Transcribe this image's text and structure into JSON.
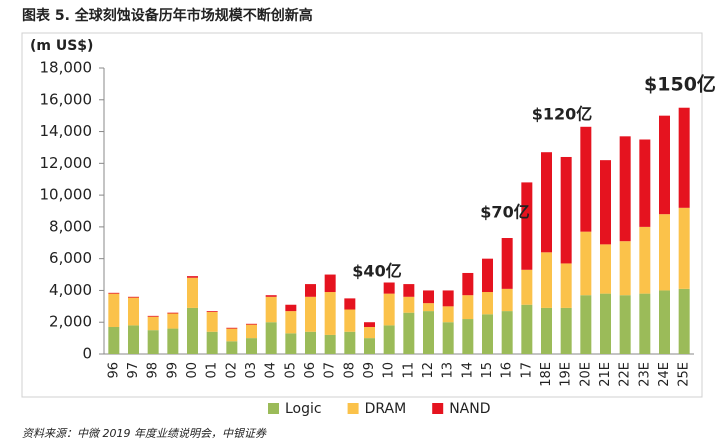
{
  "chart_data": {
    "type": "stacked_bar",
    "title": "图表 5. 全球刻蚀设备历年市场规模不断创新高",
    "y_label": "(m US$)",
    "source": "资料来源：中微 2019 年度业绩说明会，中银证券",
    "categories": [
      "96",
      "97",
      "98",
      "99",
      "00",
      "01",
      "02",
      "03",
      "04",
      "05",
      "06",
      "07",
      "08",
      "09",
      "10",
      "11",
      "12",
      "13",
      "14",
      "15",
      "16",
      "17",
      "18E",
      "19E",
      "20E",
      "21E",
      "22E",
      "23E",
      "24E",
      "25E"
    ],
    "series": [
      {
        "name": "Logic",
        "color": "#9bbb59",
        "values": [
          1700,
          1800,
          1500,
          1600,
          2900,
          1400,
          800,
          1000,
          2000,
          1300,
          1400,
          1200,
          1400,
          1000,
          1800,
          2600,
          2700,
          2000,
          2200,
          2500,
          2700,
          3100,
          2900,
          2900,
          3700,
          3800,
          3700,
          3800,
          4000,
          4100
        ]
      },
      {
        "name": "DRAM",
        "color": "#fbc24a",
        "values": [
          2100,
          1750,
          850,
          950,
          1900,
          1250,
          800,
          850,
          1600,
          1400,
          2200,
          2700,
          1400,
          700,
          2000,
          1000,
          500,
          1000,
          1500,
          1400,
          1400,
          2200,
          3500,
          2800,
          4000,
          3100,
          3400,
          4200,
          4800,
          5100
        ]
      },
      {
        "name": "NAND",
        "color": "#e5131f",
        "values": [
          50,
          50,
          50,
          50,
          100,
          50,
          50,
          50,
          100,
          400,
          800,
          1100,
          700,
          300,
          700,
          800,
          800,
          1000,
          1400,
          2100,
          3200,
          5500,
          6300,
          6700,
          6600,
          5300,
          6600,
          5500,
          6200,
          6300
        ]
      }
    ],
    "annotations": [
      "$40亿",
      "$70亿",
      "$120亿",
      "$150亿"
    ],
    "ylim": [
      0,
      18000
    ],
    "yticks": [
      0,
      {
        "value": 2000,
        "label": "2,000"
      },
      {
        "value": 4000,
        "label": "4,000"
      },
      {
        "value": 6000,
        "label": "6,000"
      },
      {
        "value": 8000,
        "label": "8,000"
      },
      {
        "value": 10000,
        "label": "10,000"
      },
      {
        "value": 12000,
        "label": "12,000"
      },
      {
        "value": 14000,
        "label": "14,000"
      },
      {
        "value": 16000,
        "label": "16,000"
      },
      {
        "value": 18000,
        "label": "18,000"
      }
    ],
    "legend": "bottom"
  }
}
